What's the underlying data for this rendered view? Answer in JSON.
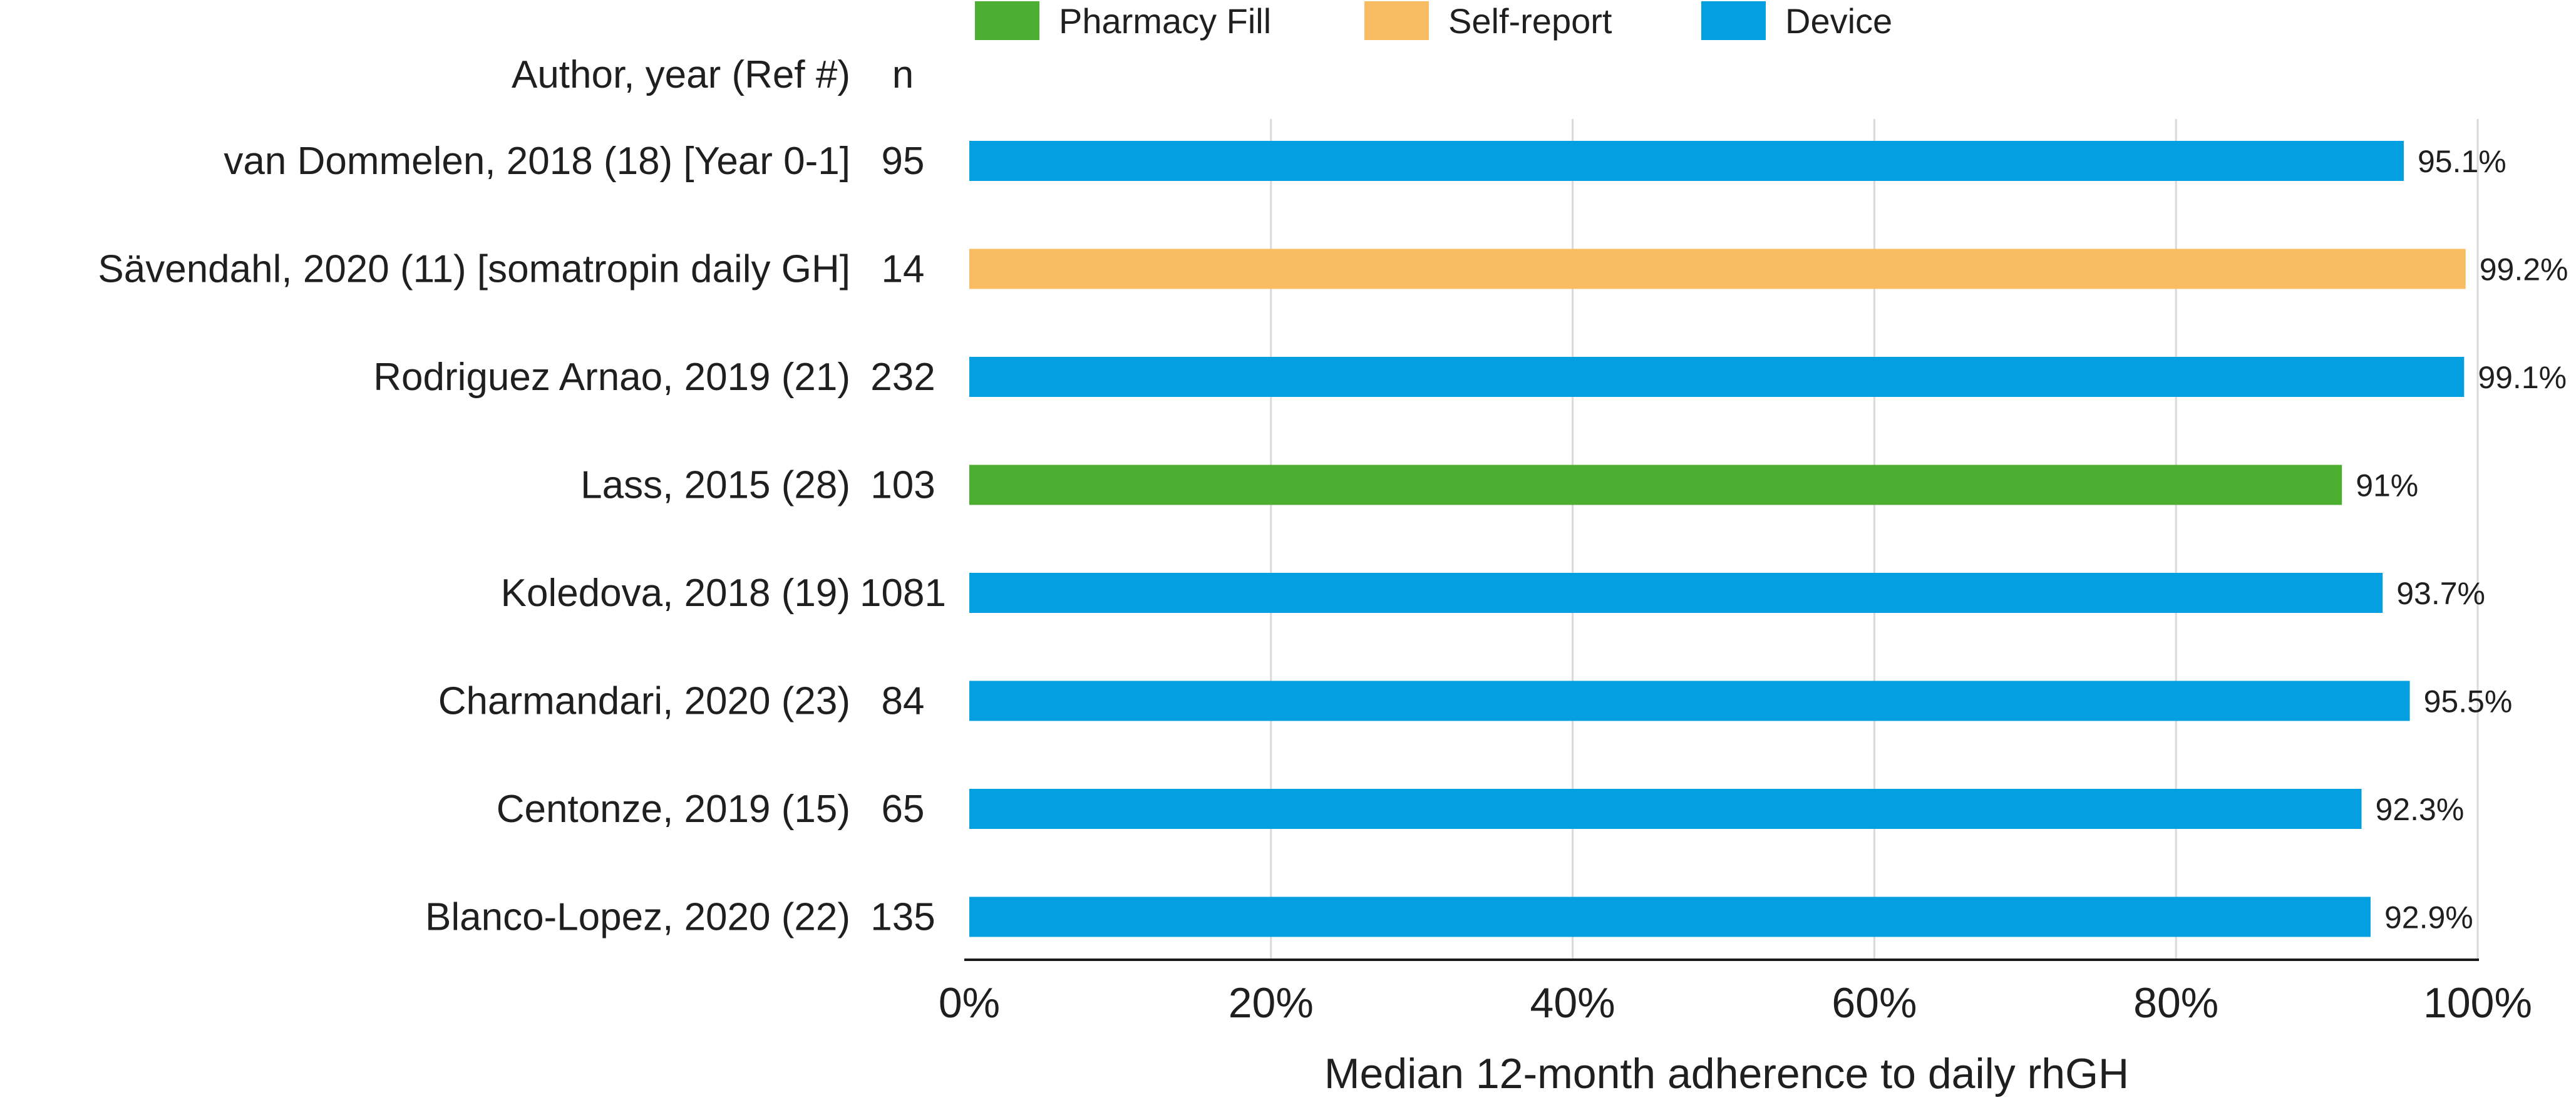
{
  "chart_data": {
    "type": "bar",
    "orientation": "horizontal",
    "title": "",
    "xlabel": "Median 12-month adherence to daily rhGH",
    "ylabel": "",
    "author_header": "Author, year (Ref #)",
    "n_header": "n",
    "xlim": [
      0,
      100
    ],
    "xticks": [
      0,
      20,
      40,
      60,
      80,
      100
    ],
    "xtick_labels": [
      "0%",
      "20%",
      "40%",
      "60%",
      "80%",
      "100%"
    ],
    "grid": "vertical",
    "legend_position": "top",
    "legend": [
      {
        "key": "pharmacy",
        "label": "Pharmacy Fill"
      },
      {
        "key": "self",
        "label": "Self-report"
      },
      {
        "key": "device",
        "label": "Device"
      }
    ],
    "colors": {
      "pharmacy": "#4caf32",
      "self": "#f8bd62",
      "device": "#049fe0",
      "grid": "#d9d9d9",
      "axis": "#1a1a1a",
      "text": "#1f1f1f"
    },
    "bars": [
      {
        "study": "van Dommelen, 2018 (18) [Year 0-1]",
        "n": "95",
        "value": 95.1,
        "label": "95.1%",
        "method": "device"
      },
      {
        "study": "Sävendahl, 2020 (11) [somatropin daily GH]",
        "n": "14",
        "value": 99.2,
        "label": "99.2%",
        "method": "self"
      },
      {
        "study": "Rodriguez Arnao, 2019 (21)",
        "n": "232",
        "value": 99.1,
        "label": "99.1%",
        "method": "device"
      },
      {
        "study": "Lass, 2015 (28)",
        "n": "103",
        "value": 91,
        "label": "91%",
        "method": "pharmacy"
      },
      {
        "study": "Koledova, 2018 (19)",
        "n": "1081",
        "value": 93.7,
        "label": "93.7%",
        "method": "device"
      },
      {
        "study": "Charmandari, 2020 (23)",
        "n": "84",
        "value": 95.5,
        "label": "95.5%",
        "method": "device"
      },
      {
        "study": "Centonze, 2019 (15)",
        "n": "65",
        "value": 92.3,
        "label": "92.3%",
        "method": "device"
      },
      {
        "study": "Blanco-Lopez, 2020 (22)",
        "n": "135",
        "value": 92.9,
        "label": "92.9%",
        "method": "device"
      }
    ]
  }
}
